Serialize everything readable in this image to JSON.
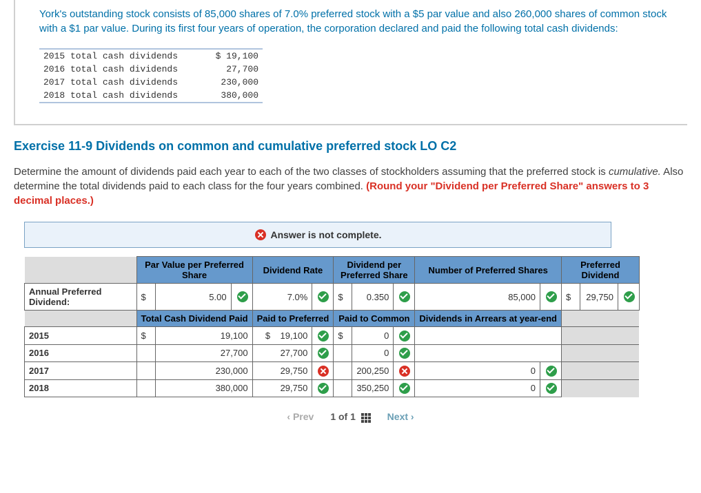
{
  "problem": {
    "intro": "York's outstanding stock consists of 85,000 shares of 7.0% preferred stock with a $5 par value and also 260,000 shares of common stock with a $1 par value. During its first four years of operation, the corporation declared and paid the following total cash dividends:",
    "cash_dividends": {
      "rows": [
        {
          "label": "2015 total cash dividends",
          "value": "$ 19,100"
        },
        {
          "label": "2016 total cash dividends",
          "value": "27,700"
        },
        {
          "label": "2017 total cash dividends",
          "value": "230,000"
        },
        {
          "label": "2018 total cash dividends",
          "value": "380,000"
        }
      ]
    },
    "exercise_title": "Exercise 11-9 Dividends on common and cumulative preferred stock LO C2",
    "instructions_plain": "Determine the amount of dividends paid each year to each of the two classes of stockholders assuming that the preferred stock is ",
    "instructions_italic": "cumulative.",
    "instructions_rest": " Also determine the total dividends paid to each class for the four years combined. ",
    "instructions_red": "(Round your \"Dividend per Preferred Share\" answers to 3 decimal places.)"
  },
  "status": {
    "text": "Answer is not complete.",
    "icon": "x"
  },
  "tableA": {
    "headers": [
      "Par Value per Preferred Share",
      "Dividend Rate",
      "Dividend per Preferred Share",
      "Number of Preferred Shares",
      "Preferred Dividend"
    ],
    "row_label": "Annual Preferred Dividend:",
    "cells": {
      "par_sym": "$",
      "par_val": "5.00",
      "par_ok": true,
      "rate_val": "7.0%",
      "rate_ok": true,
      "dps_sym": "$",
      "dps_val": "0.350",
      "dps_ok": true,
      "shares_val": "85,000",
      "shares_ok": true,
      "pref_sym": "$",
      "pref_val": "29,750",
      "pref_ok": true
    }
  },
  "tableB": {
    "headers": [
      "Total Cash Dividend Paid",
      "Paid to Preferred",
      "Paid to Common",
      "Dividends in Arrears at year-end"
    ],
    "rows": [
      {
        "year": "2015",
        "cash_sym": "$",
        "cash": "19,100",
        "pref_sym": "$",
        "pref": "19,100",
        "pref_ok": true,
        "com_sym": "$",
        "com": "0",
        "com_ok": true,
        "arr": "",
        "arr_ok": null
      },
      {
        "year": "2016",
        "cash_sym": "",
        "cash": "27,700",
        "pref_sym": "",
        "pref": "27,700",
        "pref_ok": true,
        "com_sym": "",
        "com": "0",
        "com_ok": true,
        "arr": "",
        "arr_ok": null
      },
      {
        "year": "2017",
        "cash_sym": "",
        "cash": "230,000",
        "pref_sym": "",
        "pref": "29,750",
        "pref_ok": false,
        "com_sym": "",
        "com": "200,250",
        "com_ok": false,
        "arr": "0",
        "arr_ok": true
      },
      {
        "year": "2018",
        "cash_sym": "",
        "cash": "380,000",
        "pref_sym": "",
        "pref": "29,750",
        "pref_ok": true,
        "com_sym": "",
        "com": "350,250",
        "com_ok": true,
        "arr": "0",
        "arr_ok": true
      }
    ]
  },
  "pager": {
    "prev": "Prev",
    "pos": "1 of 1",
    "next": "Next"
  },
  "colors": {
    "header_bg": "#6699cc",
    "status_bg": "#eaf2fa",
    "accent_blue": "#0070a8",
    "red": "#d93025",
    "green": "#2e9e4a"
  }
}
